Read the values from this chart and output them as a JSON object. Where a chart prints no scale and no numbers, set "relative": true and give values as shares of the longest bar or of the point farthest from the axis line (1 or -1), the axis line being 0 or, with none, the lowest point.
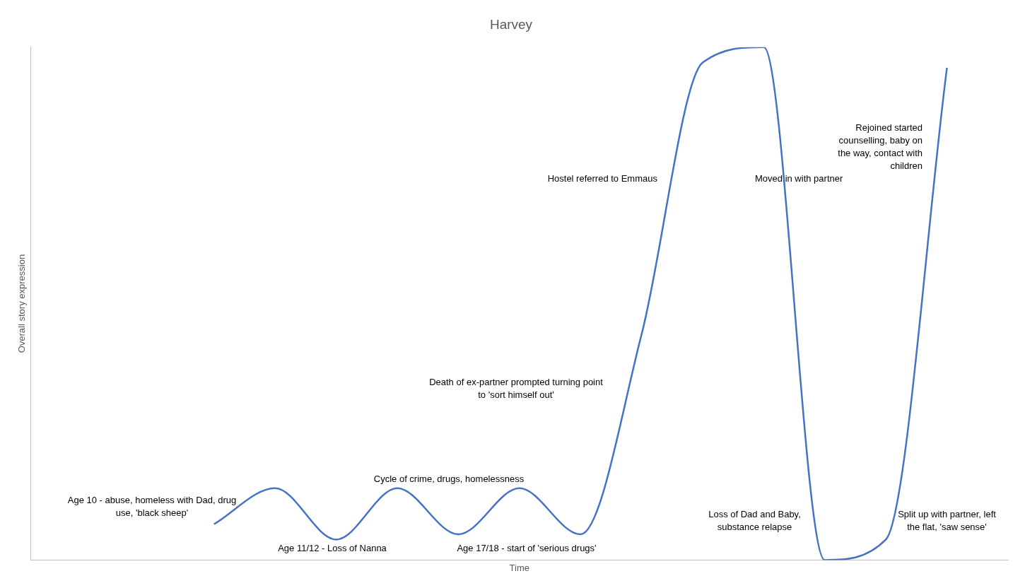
{
  "chart_data": {
    "type": "line",
    "title": "Harvey",
    "xlabel": "Time",
    "ylabel": "Overall story expression",
    "relative": true,
    "marker": "none",
    "categories": [
      null,
      null,
      null,
      null,
      null,
      null,
      null,
      null,
      null,
      null,
      null,
      null,
      null,
      null,
      null,
      null,
      null
    ],
    "series": [
      {
        "color": "#4472c4",
        "values": [
          null,
          null,
          null,
          0.07,
          0.14,
          0.04,
          0.14,
          0.05,
          0.14,
          0.05,
          0.44,
          0.97,
          1,
          0,
          0.04,
          0.96,
          null
        ]
      }
    ],
    "annotations": [
      "Age 10 - abuse, homeless with Dad, drug use, 'black sheep'",
      "Age 11/12 - Loss of Nanna",
      "Cycle of crime, drugs, homelessness",
      "Age 17/18 - start of 'serious drugs'",
      "Death of ex-partner prompted turning point to 'sort himself out'",
      "Hostel referred to Emmaus",
      "Moved in with partner",
      "Loss of Dad and Baby, substance relapse",
      "Split up with partner, left the flat, 'saw sense'",
      "Rejoined started counselling, baby on the way, contact with children"
    ]
  }
}
